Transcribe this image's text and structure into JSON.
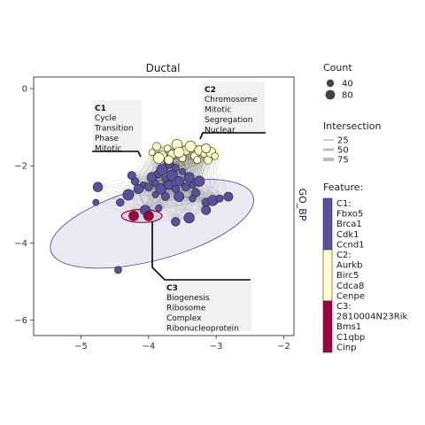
{
  "chart_data": {
    "type": "scatter",
    "title": "Ductal",
    "xlabel": "",
    "ylabel": "GO_BP",
    "xlim": [
      -5.7,
      -1.85
    ],
    "ylim": [
      -6.4,
      0.3
    ],
    "x_ticks": [
      -5,
      -4,
      -3,
      -2
    ],
    "y_ticks": [
      0,
      -2,
      -4,
      -6
    ],
    "grid": false,
    "clusters": [
      {
        "id": "C1",
        "color": "#5b4fa0",
        "ellipse": {
          "cx": -3.95,
          "cy": -3.5,
          "rx": 1.55,
          "ry": 0.95,
          "angle": -0.26
        },
        "label_lines": [
          "Cycle",
          "Transition",
          "Phase",
          "Mitotic"
        ],
        "points": [
          {
            "x": -4.08,
            "y": -2.5
          },
          {
            "x": -4.0,
            "y": -2.55
          },
          {
            "x": -3.95,
            "y": -2.3
          },
          {
            "x": -3.9,
            "y": -2.45
          },
          {
            "x": -3.85,
            "y": -2.2
          },
          {
            "x": -3.82,
            "y": -2.6
          },
          {
            "x": -3.75,
            "y": -2.35
          },
          {
            "x": -3.7,
            "y": -2.5
          },
          {
            "x": -3.65,
            "y": -2.25
          },
          {
            "x": -3.6,
            "y": -2.6
          },
          {
            "x": -3.55,
            "y": -2.4
          },
          {
            "x": -3.5,
            "y": -2.15
          },
          {
            "x": -3.45,
            "y": -2.55
          },
          {
            "x": -3.4,
            "y": -2.3
          },
          {
            "x": -3.35,
            "y": -2.5
          },
          {
            "x": -3.3,
            "y": -2.7
          },
          {
            "x": -3.25,
            "y": -2.4
          },
          {
            "x": -3.6,
            "y": -2.05
          },
          {
            "x": -3.7,
            "y": -1.95
          },
          {
            "x": -3.8,
            "y": -2.1
          },
          {
            "x": -4.2,
            "y": -2.4
          },
          {
            "x": -4.15,
            "y": -2.6
          },
          {
            "x": -3.9,
            "y": -2.75
          },
          {
            "x": -3.75,
            "y": -2.8
          },
          {
            "x": -3.55,
            "y": -2.8
          },
          {
            "x": -3.35,
            "y": -2.85
          },
          {
            "x": -3.15,
            "y": -2.95
          },
          {
            "x": -3.05,
            "y": -2.9
          },
          {
            "x": -2.95,
            "y": -2.85
          },
          {
            "x": -3.15,
            "y": -3.15
          },
          {
            "x": -4.3,
            "y": -2.75
          },
          {
            "x": -4.42,
            "y": -2.95
          },
          {
            "x": -4.75,
            "y": -2.55
          },
          {
            "x": -4.78,
            "y": -2.95
          },
          {
            "x": -4.25,
            "y": -2.25
          },
          {
            "x": -4.05,
            "y": -3.15
          },
          {
            "x": -3.85,
            "y": -3.1
          },
          {
            "x": -3.6,
            "y": -3.45
          },
          {
            "x": -3.4,
            "y": -3.35
          },
          {
            "x": -4.45,
            "y": -4.7
          },
          {
            "x": -2.82,
            "y": -2.8
          }
        ]
      },
      {
        "id": "C2",
        "color": "#ffffcc",
        "ellipse": {
          "cx": -3.45,
          "cy": -1.7,
          "rx": 0.55,
          "ry": 0.3,
          "angle": 0
        },
        "label_lines": [
          "Chromosome",
          "Mitotic",
          "Segregation",
          "Nuclear"
        ],
        "points": [
          {
            "x": -3.95,
            "y": -1.65
          },
          {
            "x": -3.88,
            "y": -1.5
          },
          {
            "x": -3.8,
            "y": -1.75
          },
          {
            "x": -3.72,
            "y": -1.55
          },
          {
            "x": -3.65,
            "y": -1.7
          },
          {
            "x": -3.58,
            "y": -1.45
          },
          {
            "x": -3.5,
            "y": -1.8
          },
          {
            "x": -3.45,
            "y": -1.6
          },
          {
            "x": -3.38,
            "y": -1.5
          },
          {
            "x": -3.32,
            "y": -1.75
          },
          {
            "x": -3.25,
            "y": -1.6
          },
          {
            "x": -3.18,
            "y": -1.7
          },
          {
            "x": -3.12,
            "y": -1.85
          },
          {
            "x": -3.08,
            "y": -1.65
          },
          {
            "x": -3.02,
            "y": -1.75
          },
          {
            "x": -3.7,
            "y": -1.85
          },
          {
            "x": -3.55,
            "y": -1.65
          },
          {
            "x": -3.28,
            "y": -1.85
          },
          {
            "x": -3.15,
            "y": -1.55
          },
          {
            "x": -3.85,
            "y": -1.8
          }
        ]
      },
      {
        "id": "C3",
        "color": "#9e0142",
        "ellipse": {
          "cx": -4.1,
          "cy": -3.3,
          "rx": 0.3,
          "ry": 0.17,
          "angle": 0
        },
        "label_lines": [
          "Biogenesis",
          "Ribosome",
          "Complex",
          "Ribonucleoprotein"
        ],
        "points": [
          {
            "x": -4.22,
            "y": -3.3
          },
          {
            "x": -4.0,
            "y": -3.3
          }
        ]
      }
    ],
    "legend": {
      "count_title": "Count",
      "count_values": [
        "40",
        "80"
      ],
      "intersection_title": "Intersection",
      "intersection_values": [
        "25",
        "50",
        "75"
      ],
      "feature_title": "Feature:",
      "feature_groups": [
        {
          "label": "C1:",
          "color": "#5b4fa0",
          "genes": [
            "Fbxo5",
            "Brca1",
            "Cdk1",
            "Ccnd1"
          ]
        },
        {
          "label": "C2:",
          "color": "#ffffcc",
          "genes": [
            "Aurkb",
            "Birc5",
            "Cdca8",
            "Cenpe"
          ]
        },
        {
          "label": "C3:",
          "color": "#9e0142",
          "genes": [
            "2810004N23Rik",
            "Bms1",
            "C1qbp",
            "Cinp"
          ]
        }
      ]
    }
  }
}
